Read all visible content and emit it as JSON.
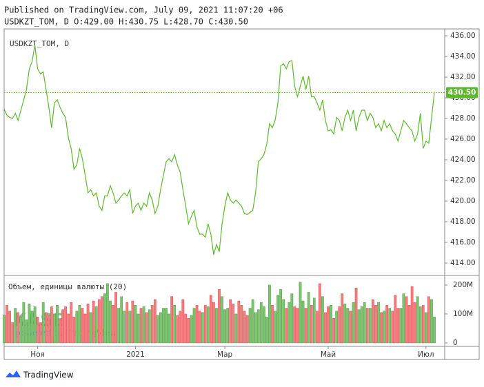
{
  "header": {
    "published": "Published on TradingView.com, July 09, 2021 11:07:20 +06",
    "ohlc": "USDKZT_TOM, D O:429.00 H:430.75 L:428.70 C:430.50"
  },
  "chart_data": {
    "type": "line",
    "legend": "USDKZT_TOM, D",
    "color": "#5eb82c",
    "values": [
      428.9,
      428.3,
      428.1,
      428.0,
      428.5,
      427.8,
      428.8,
      429.8,
      430.8,
      432.8,
      433.5,
      435.1,
      432.8,
      432.3,
      432.5,
      430.8,
      429.1,
      427.1,
      429.5,
      429.8,
      429.1,
      428.5,
      428.1,
      426.1,
      425.1,
      423.1,
      423.5,
      425.1,
      424.1,
      422.5,
      420.8,
      421.1,
      420.5,
      420.8,
      419.5,
      419.1,
      420.5,
      420.5,
      421.5,
      420.8,
      419.8,
      420.1,
      420.5,
      420.8,
      420.5,
      421.1,
      418.8,
      419.5,
      419.8,
      419.1,
      419.8,
      419.5,
      420.8,
      420.1,
      418.8,
      419.5,
      421.1,
      422.5,
      423.8,
      424.1,
      423.8,
      424.5,
      423.5,
      422.8,
      421.1,
      419.5,
      417.8,
      418.5,
      419.1,
      417.5,
      416.8,
      416.8,
      416.5,
      417.8,
      416.8,
      414.8,
      415.8,
      415.1,
      417.8,
      419.5,
      420.8,
      420.1,
      419.8,
      420.1,
      419.8,
      419.5,
      418.8,
      418.7,
      418.9,
      419.1,
      420.8,
      423.8,
      424.1,
      424.5,
      425.5,
      427.5,
      427.1,
      427.8,
      429.5,
      433.1,
      433.3,
      432.8,
      433.5,
      433.6,
      431.1,
      430.1,
      431.1,
      432.1,
      430.8,
      432.1,
      430.1,
      430.1,
      429.5,
      428.8,
      429.8,
      427.8,
      426.8,
      426.9,
      426.5,
      428.1,
      427.8,
      426.8,
      428.1,
      428.8,
      427.8,
      428.8,
      426.8,
      428.1,
      428.8,
      428.8,
      427.8,
      428.5,
      428.1,
      427.1,
      427.5,
      426.8,
      427.8,
      427.1,
      427.5,
      426.8,
      426.5,
      425.8,
      426.8,
      427.8,
      427.5,
      427.1,
      426.8,
      425.8,
      426.5,
      428.5,
      425.1,
      425.8,
      425.6,
      428.1,
      430.5
    ],
    "last_price_label": "430.50",
    "ylim": [
      413,
      436.67
    ],
    "yticks": [
      {
        "value": 414,
        "label": "414.00"
      },
      {
        "value": 416,
        "label": "416.00"
      },
      {
        "value": 418,
        "label": "418.00"
      },
      {
        "value": 420,
        "label": "420.00"
      },
      {
        "value": 422,
        "label": "422.00"
      },
      {
        "value": 424,
        "label": "424.00"
      },
      {
        "value": 426,
        "label": "426.00"
      },
      {
        "value": 428,
        "label": "428.00"
      },
      {
        "value": 430,
        "label": "430.00"
      },
      {
        "value": 432,
        "label": "432.00"
      },
      {
        "value": 434,
        "label": "434.00"
      },
      {
        "value": 436,
        "label": "436.00"
      }
    ],
    "xlim": [
      0,
      157.7
    ],
    "xticks": [
      {
        "value": 12,
        "label": "Ноя"
      },
      {
        "value": 47,
        "label": "2021"
      },
      {
        "value": 79,
        "label": "Мар"
      },
      {
        "value": 116,
        "label": "Май"
      },
      {
        "value": 151,
        "label": "Июл"
      }
    ],
    "volume": {
      "title": "Объем, единицы валюты (20)",
      "up_color": "#7cc46e",
      "down_color": "#f47c7c",
      "values": [
        95,
        130,
        110,
        70,
        120,
        105,
        90,
        140,
        80,
        135,
        110,
        125,
        90,
        70,
        140,
        105,
        95,
        125,
        100,
        130,
        80,
        115,
        125,
        100,
        140,
        90,
        110,
        130,
        120,
        100,
        135,
        105,
        145,
        125,
        150,
        160,
        170,
        205,
        145,
        130,
        175,
        120,
        160,
        110,
        140,
        110,
        145,
        130,
        100,
        120,
        125,
        105,
        115,
        130,
        150,
        95,
        105,
        120,
        120,
        100,
        160,
        130,
        95,
        110,
        150,
        100,
        85,
        95,
        120,
        130,
        110,
        105,
        130,
        125,
        165,
        140,
        120,
        185,
        160,
        115,
        120,
        150,
        135,
        100,
        145,
        130,
        110,
        95,
        120,
        150,
        105,
        115,
        140,
        125,
        90,
        200,
        130,
        110,
        165,
        185,
        150,
        120,
        140,
        170,
        125,
        120,
        210,
        145,
        120,
        175,
        130,
        155,
        110,
        205,
        160,
        105,
        125,
        130,
        85,
        110,
        125,
        170,
        135,
        120,
        110,
        140,
        190,
        115,
        125,
        140,
        120,
        120,
        150,
        130,
        140,
        105,
        110,
        130,
        120,
        110,
        165,
        120,
        120,
        170,
        160,
        130,
        195,
        140,
        160,
        125,
        130,
        105,
        160,
        150,
        90
      ],
      "y2lim": [
        -12,
        226
      ],
      "y2ticks": [
        {
          "value": 200,
          "label": "200M"
        },
        {
          "value": 100,
          "label": "100M"
        },
        0
      ]
    },
    "watermark": {
      "logo": "KASE",
      "powered": "powered by TradingView"
    }
  },
  "footer": {
    "brand": "TradingView"
  }
}
